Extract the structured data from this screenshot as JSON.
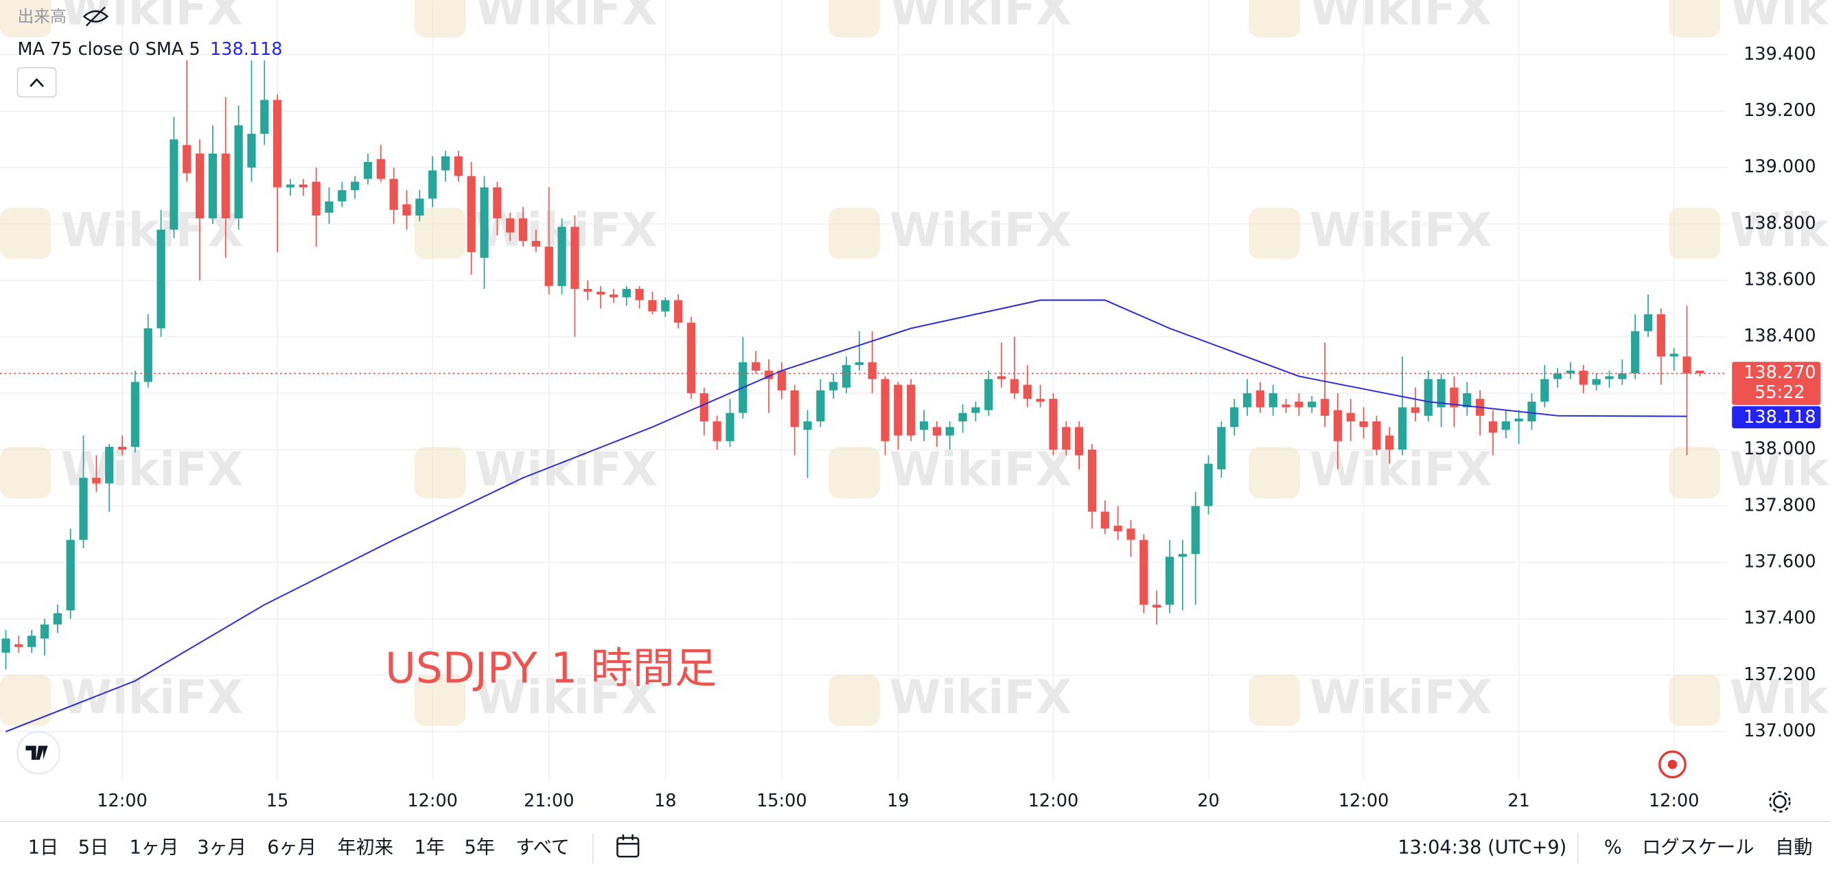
{
  "ui": {
    "volume_label": "出来高",
    "ranges": [
      "1日",
      "5日",
      "1ヶ月",
      "3ヶ月",
      "6ヶ月",
      "年初来",
      "1年",
      "5年",
      "すべて"
    ],
    "clock": "13:04:38 (UTC+9)",
    "percent": "%",
    "log_scale": "ログスケール",
    "auto": "自動",
    "watermark": "WikiFX"
  },
  "chart_data": {
    "type": "candlestick",
    "annotation": "USDJPY 1 時間足",
    "up_color": "#26a69a",
    "down_color": "#ef5350",
    "grid": true,
    "categories": [
      null,
      null,
      null,
      null,
      null,
      null,
      null,
      null,
      null,
      "12:00",
      null,
      null,
      null,
      null,
      null,
      null,
      null,
      null,
      null,
      null,
      null,
      "15",
      null,
      null,
      null,
      null,
      null,
      null,
      null,
      null,
      null,
      null,
      null,
      "12:00",
      null,
      null,
      null,
      null,
      null,
      null,
      null,
      null,
      "21:00",
      null,
      null,
      null,
      null,
      null,
      null,
      null,
      null,
      "18",
      null,
      null,
      null,
      null,
      null,
      null,
      null,
      null,
      "15:00",
      null,
      null,
      null,
      null,
      null,
      null,
      null,
      null,
      "19",
      null,
      null,
      null,
      null,
      null,
      null,
      null,
      null,
      null,
      null,
      null,
      "12:00",
      null,
      null,
      null,
      null,
      null,
      null,
      null,
      null,
      null,
      null,
      null,
      "20",
      null,
      null,
      null,
      null,
      null,
      null,
      null,
      null,
      null,
      null,
      null,
      "12:00",
      null,
      null,
      null,
      null,
      null,
      null,
      null,
      null,
      null,
      null,
      null,
      "21",
      null,
      null,
      null,
      null,
      null,
      null,
      null,
      null,
      null,
      null,
      null,
      "12:00",
      null,
      null
    ],
    "open": [
      137.28,
      137.31,
      137.3,
      137.33,
      137.38,
      137.43,
      137.68,
      137.9,
      137.88,
      138.01,
      138.01,
      138.24,
      138.43,
      138.78,
      139.08,
      139.05,
      138.82,
      139.05,
      138.82,
      139.0,
      139.12,
      139.24,
      138.93,
      138.94,
      138.95,
      138.84,
      138.88,
      138.92,
      138.96,
      139.03,
      138.96,
      138.87,
      138.83,
      138.89,
      138.99,
      139.04,
      138.97,
      138.68,
      138.93,
      138.82,
      138.82,
      138.74,
      138.72,
      138.58,
      138.79,
      138.57,
      138.56,
      138.55,
      138.54,
      138.57,
      138.53,
      138.49,
      138.53,
      138.45,
      138.2,
      138.1,
      138.03,
      138.13,
      138.31,
      138.28,
      138.28,
      138.21,
      138.07,
      138.1,
      138.21,
      138.22,
      138.3,
      138.31,
      138.25,
      138.23,
      138.23,
      138.07,
      138.08,
      138.05,
      138.1,
      138.13,
      138.14,
      138.26,
      138.25,
      138.23,
      138.18,
      138.18,
      138.08,
      138.08,
      138.0,
      137.78,
      137.73,
      137.72,
      137.68,
      137.45,
      137.45,
      137.62,
      137.63,
      137.8,
      137.93,
      138.08,
      138.15,
      138.21,
      138.15,
      138.16,
      138.17,
      138.15,
      138.18,
      138.14,
      138.13,
      138.1,
      138.1,
      138.05,
      138.0,
      138.15,
      138.12,
      138.15,
      138.22,
      138.15,
      138.18,
      138.1,
      138.07,
      138.1,
      138.1,
      138.17,
      138.25,
      138.27,
      138.28,
      138.23,
      138.25,
      138.25,
      138.27,
      138.42,
      138.48,
      138.33,
      138.33,
      138.28
    ],
    "high": [
      137.36,
      137.34,
      137.36,
      137.4,
      137.45,
      137.72,
      138.05,
      137.98,
      138.02,
      138.05,
      138.28,
      138.48,
      138.85,
      139.18,
      139.38,
      139.1,
      139.15,
      139.25,
      139.22,
      139.38,
      139.38,
      139.26,
      138.96,
      138.96,
      139.0,
      138.93,
      138.95,
      138.97,
      139.05,
      139.08,
      139.0,
      138.92,
      138.92,
      139.04,
      139.06,
      139.06,
      139.02,
      138.97,
      138.95,
      138.84,
      138.86,
      138.78,
      138.93,
      138.82,
      138.83,
      138.6,
      138.58,
      138.57,
      138.58,
      138.58,
      138.56,
      138.54,
      138.55,
      138.47,
      138.22,
      138.12,
      138.18,
      138.4,
      138.35,
      138.32,
      138.31,
      138.23,
      138.14,
      138.25,
      138.27,
      138.33,
      138.42,
      138.42,
      138.26,
      138.24,
      138.25,
      138.14,
      138.1,
      138.1,
      138.16,
      138.17,
      138.28,
      138.38,
      138.4,
      138.3,
      138.23,
      138.2,
      138.1,
      138.1,
      138.02,
      137.82,
      137.8,
      137.75,
      137.7,
      137.5,
      137.68,
      137.68,
      137.85,
      137.98,
      138.1,
      138.18,
      138.25,
      138.24,
      138.23,
      138.18,
      138.2,
      138.19,
      138.38,
      138.2,
      138.18,
      138.15,
      138.12,
      138.08,
      138.33,
      138.22,
      138.28,
      138.27,
      138.26,
      138.24,
      138.21,
      138.14,
      138.14,
      138.14,
      138.2,
      138.3,
      138.29,
      138.31,
      138.3,
      138.27,
      138.28,
      138.32,
      138.48,
      138.55,
      138.5,
      138.36,
      138.51,
      138.28
    ],
    "low": [
      137.22,
      137.28,
      137.28,
      137.27,
      137.35,
      137.4,
      137.65,
      137.85,
      137.78,
      137.98,
      137.99,
      138.22,
      138.4,
      138.75,
      138.95,
      138.6,
      138.8,
      138.68,
      138.78,
      138.95,
      139.08,
      138.7,
      138.9,
      138.9,
      138.72,
      138.8,
      138.86,
      138.89,
      138.94,
      138.95,
      138.8,
      138.78,
      138.81,
      138.86,
      138.95,
      138.95,
      138.62,
      138.57,
      138.76,
      138.74,
      138.72,
      138.7,
      138.55,
      138.55,
      138.4,
      138.53,
      138.5,
      138.52,
      138.51,
      138.5,
      138.48,
      138.47,
      138.43,
      138.18,
      138.05,
      138.0,
      138.01,
      138.11,
      138.27,
      138.13,
      138.18,
      137.98,
      137.9,
      138.08,
      138.18,
      138.2,
      138.28,
      138.2,
      137.98,
      138.0,
      138.03,
      138.03,
      138.01,
      138.0,
      138.06,
      138.1,
      138.12,
      138.22,
      138.18,
      138.15,
      138.15,
      137.98,
      137.98,
      137.93,
      137.72,
      137.7,
      137.68,
      137.62,
      137.42,
      137.38,
      137.42,
      137.43,
      137.45,
      137.77,
      137.9,
      138.05,
      138.12,
      138.13,
      138.12,
      138.13,
      138.12,
      138.13,
      138.08,
      137.93,
      138.03,
      138.04,
      137.98,
      137.95,
      137.98,
      138.1,
      138.1,
      138.08,
      138.08,
      138.12,
      138.05,
      137.98,
      138.04,
      138.02,
      138.07,
      138.15,
      138.22,
      138.25,
      138.2,
      138.21,
      138.22,
      138.23,
      138.25,
      138.4,
      138.23,
      138.28,
      137.98,
      138.26
    ],
    "close": [
      137.33,
      137.3,
      137.34,
      137.38,
      137.42,
      137.68,
      137.9,
      137.88,
      138.01,
      138.0,
      138.24,
      138.43,
      138.78,
      139.1,
      138.98,
      138.82,
      139.05,
      138.82,
      139.15,
      139.12,
      139.24,
      138.93,
      138.94,
      138.93,
      138.83,
      138.88,
      138.92,
      138.95,
      139.02,
      138.96,
      138.85,
      138.83,
      138.89,
      138.99,
      139.04,
      138.97,
      138.7,
      138.93,
      138.82,
      138.77,
      138.74,
      138.72,
      138.58,
      138.79,
      138.57,
      138.56,
      138.55,
      138.54,
      138.57,
      138.53,
      138.49,
      138.53,
      138.45,
      138.2,
      138.1,
      138.03,
      138.13,
      138.31,
      138.28,
      138.25,
      138.21,
      138.08,
      138.1,
      138.21,
      138.24,
      138.3,
      138.31,
      138.25,
      138.03,
      138.05,
      138.05,
      138.1,
      138.05,
      138.08,
      138.13,
      138.15,
      138.25,
      138.25,
      138.2,
      138.18,
      138.17,
      138.0,
      138.0,
      137.98,
      137.78,
      137.72,
      137.71,
      137.68,
      137.45,
      137.44,
      137.62,
      137.63,
      137.8,
      137.95,
      138.08,
      138.15,
      138.2,
      138.15,
      138.2,
      138.15,
      138.15,
      138.17,
      138.12,
      138.03,
      138.1,
      138.08,
      138.0,
      138.0,
      138.15,
      138.13,
      138.25,
      138.25,
      138.15,
      138.2,
      138.12,
      138.06,
      138.1,
      138.11,
      138.17,
      138.25,
      138.27,
      138.28,
      138.23,
      138.25,
      138.26,
      138.27,
      138.42,
      138.48,
      138.33,
      138.34,
      138.27,
      138.27
    ],
    "ma": {
      "name": "MA 75 close 0 SMA 5",
      "color": "#2e2ed6",
      "x": [
        0,
        10,
        20,
        30,
        40,
        50,
        60,
        70,
        80,
        85,
        90,
        100,
        110,
        120,
        130
      ],
      "values": [
        137.0,
        137.18,
        137.45,
        137.68,
        137.9,
        138.08,
        138.28,
        138.43,
        138.53,
        138.53,
        138.43,
        138.26,
        138.17,
        138.12,
        138.118
      ],
      "label_color": "#2323f5"
    },
    "last_price": {
      "value": 138.27,
      "label": "138.270"
    },
    "countdown": "55:22",
    "ylim": [
      136.83,
      139.594
    ],
    "yticks": [
      {
        "value": 137,
        "label": "137.000"
      },
      {
        "value": 137.2,
        "label": "137.200"
      },
      {
        "value": 137.4,
        "label": "137.400"
      },
      {
        "value": 137.6,
        "label": "137.600"
      },
      {
        "value": 137.8,
        "label": "137.800"
      },
      {
        "value": 138,
        "label": "138.000"
      },
      {
        "value": 138.2,
        "label": "138.200"
      },
      {
        "value": 138.4,
        "label": "138.400"
      },
      {
        "value": 138.6,
        "label": "138.600"
      },
      {
        "value": 138.8,
        "label": "138.800"
      },
      {
        "value": 139,
        "label": "139.000"
      },
      {
        "value": 139.2,
        "label": "139.200"
      },
      {
        "value": 139.4,
        "label": "139.400"
      }
    ]
  }
}
